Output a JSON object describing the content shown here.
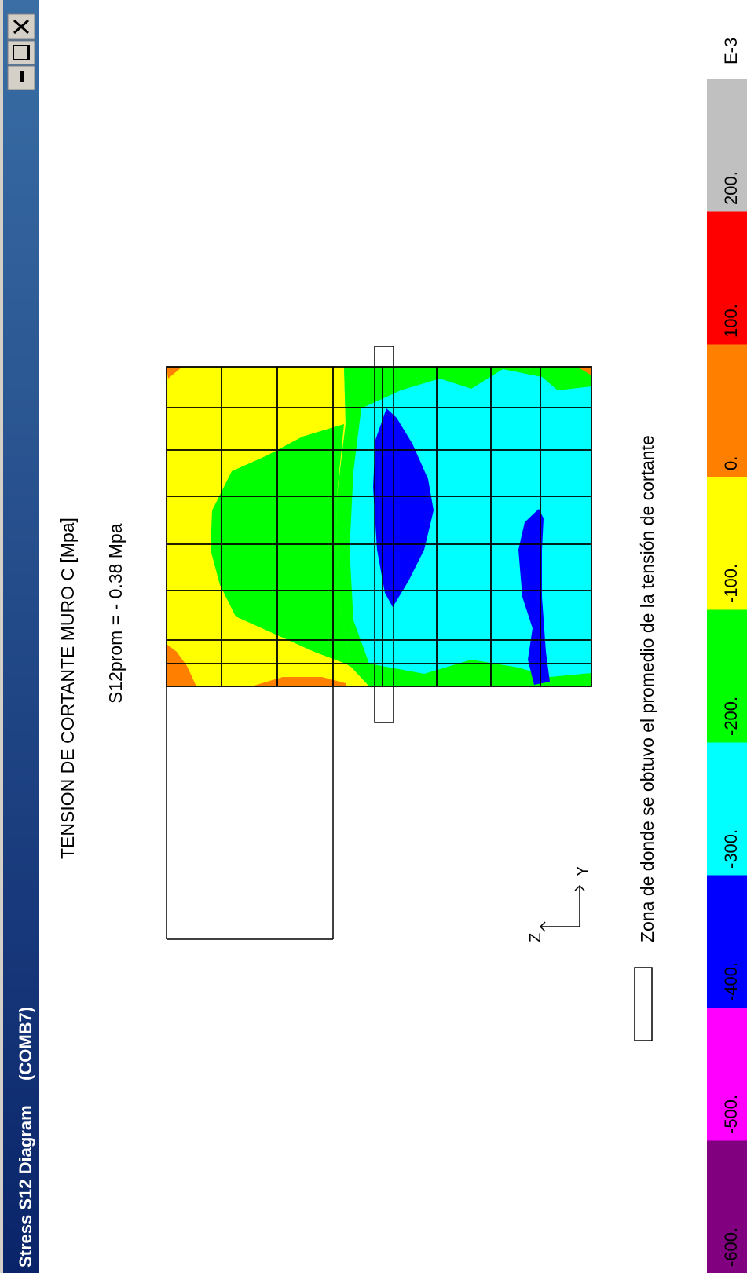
{
  "window": {
    "title": "Stress S12 Diagram",
    "subtitle": "(COMB7)",
    "title_gradient": [
      "#0a246a",
      "#3a6ea5"
    ],
    "controls": [
      {
        "name": "minimize",
        "icon": "minimize-icon"
      },
      {
        "name": "maximize",
        "icon": "maximize-icon"
      },
      {
        "name": "close",
        "icon": "close-icon"
      }
    ]
  },
  "plot": {
    "title": "TENSION DE CORTANTE MURO C [Mpa]",
    "average_label": "S12prom = - 0.38 Mpa",
    "legend_note": "Zona de donde se obtuvo el promedio de la tensión de cortante",
    "axes": {
      "vertical": "Z",
      "horizontal": "Y"
    }
  },
  "color_scale": {
    "multiplier": "E-3",
    "bands": [
      {
        "label": "-600.",
        "color": "#800080"
      },
      {
        "label": "-500.",
        "color": "#ff00ff"
      },
      {
        "label": "-400.",
        "color": "#0000ff"
      },
      {
        "label": "-300.",
        "color": "#00ffff"
      },
      {
        "label": "-200.",
        "color": "#00ff00"
      },
      {
        "label": "-100.",
        "color": "#ffff00"
      },
      {
        "label": "0.",
        "color": "#ff8000"
      },
      {
        "label": "100.",
        "color": "#ff0000"
      },
      {
        "label": "200.",
        "color": "#c0c0c0"
      }
    ]
  }
}
